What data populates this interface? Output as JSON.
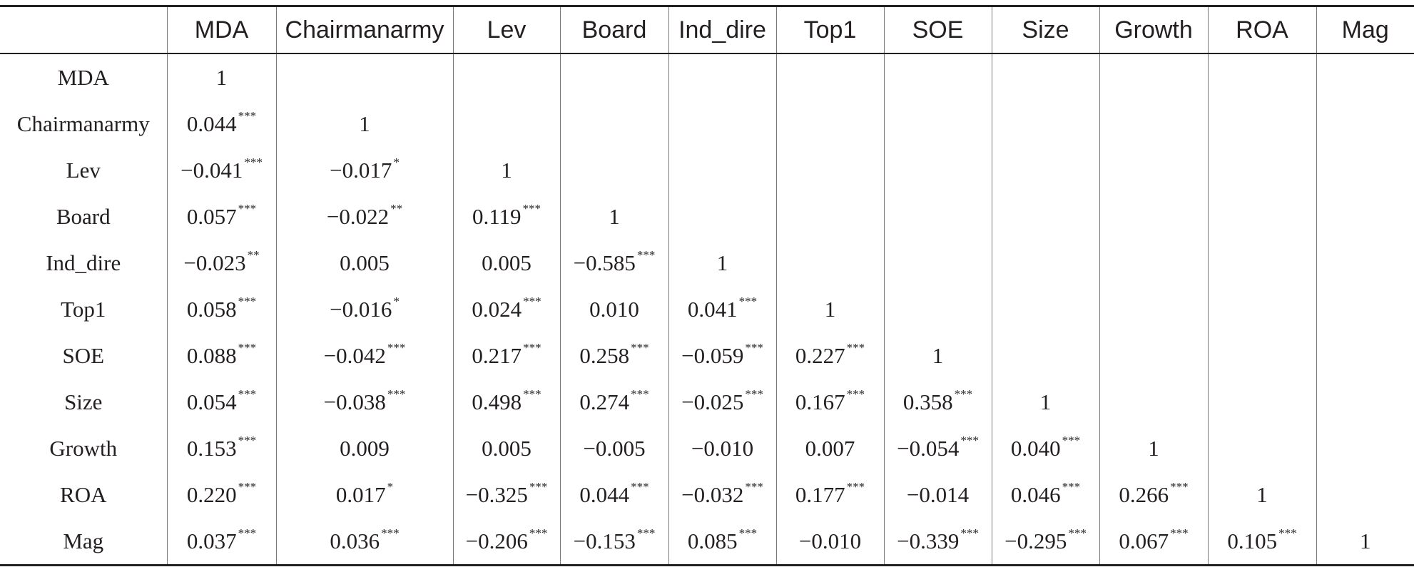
{
  "table": {
    "columns": [
      "",
      "MDA",
      "Chairmanarmy",
      "Lev",
      "Board",
      "Ind_dire",
      "Top1",
      "SOE",
      "Size",
      "Growth",
      "ROA",
      "Mag"
    ],
    "rows": [
      {
        "label": "MDA",
        "cells": [
          {
            "v": "1",
            "s": ""
          },
          {
            "v": "",
            "s": ""
          },
          {
            "v": "",
            "s": ""
          },
          {
            "v": "",
            "s": ""
          },
          {
            "v": "",
            "s": ""
          },
          {
            "v": "",
            "s": ""
          },
          {
            "v": "",
            "s": ""
          },
          {
            "v": "",
            "s": ""
          },
          {
            "v": "",
            "s": ""
          },
          {
            "v": "",
            "s": ""
          },
          {
            "v": "",
            "s": ""
          }
        ]
      },
      {
        "label": "Chairmanarmy",
        "cells": [
          {
            "v": "0.044",
            "s": "***"
          },
          {
            "v": "1",
            "s": ""
          },
          {
            "v": "",
            "s": ""
          },
          {
            "v": "",
            "s": ""
          },
          {
            "v": "",
            "s": ""
          },
          {
            "v": "",
            "s": ""
          },
          {
            "v": "",
            "s": ""
          },
          {
            "v": "",
            "s": ""
          },
          {
            "v": "",
            "s": ""
          },
          {
            "v": "",
            "s": ""
          },
          {
            "v": "",
            "s": ""
          }
        ]
      },
      {
        "label": "Lev",
        "cells": [
          {
            "v": "−0.041",
            "s": "***"
          },
          {
            "v": "−0.017",
            "s": "*"
          },
          {
            "v": "1",
            "s": ""
          },
          {
            "v": "",
            "s": ""
          },
          {
            "v": "",
            "s": ""
          },
          {
            "v": "",
            "s": ""
          },
          {
            "v": "",
            "s": ""
          },
          {
            "v": "",
            "s": ""
          },
          {
            "v": "",
            "s": ""
          },
          {
            "v": "",
            "s": ""
          },
          {
            "v": "",
            "s": ""
          }
        ]
      },
      {
        "label": "Board",
        "cells": [
          {
            "v": "0.057",
            "s": "***"
          },
          {
            "v": "−0.022",
            "s": "**"
          },
          {
            "v": "0.119",
            "s": "***"
          },
          {
            "v": "1",
            "s": ""
          },
          {
            "v": "",
            "s": ""
          },
          {
            "v": "",
            "s": ""
          },
          {
            "v": "",
            "s": ""
          },
          {
            "v": "",
            "s": ""
          },
          {
            "v": "",
            "s": ""
          },
          {
            "v": "",
            "s": ""
          },
          {
            "v": "",
            "s": ""
          }
        ]
      },
      {
        "label": "Ind_dire",
        "cells": [
          {
            "v": "−0.023",
            "s": "**"
          },
          {
            "v": "0.005",
            "s": ""
          },
          {
            "v": "0.005",
            "s": ""
          },
          {
            "v": "−0.585",
            "s": "***"
          },
          {
            "v": "1",
            "s": ""
          },
          {
            "v": "",
            "s": ""
          },
          {
            "v": "",
            "s": ""
          },
          {
            "v": "",
            "s": ""
          },
          {
            "v": "",
            "s": ""
          },
          {
            "v": "",
            "s": ""
          },
          {
            "v": "",
            "s": ""
          }
        ]
      },
      {
        "label": "Top1",
        "cells": [
          {
            "v": "0.058",
            "s": "***"
          },
          {
            "v": "−0.016",
            "s": "*"
          },
          {
            "v": "0.024",
            "s": "***"
          },
          {
            "v": "0.010",
            "s": ""
          },
          {
            "v": "0.041",
            "s": "***"
          },
          {
            "v": "1",
            "s": ""
          },
          {
            "v": "",
            "s": ""
          },
          {
            "v": "",
            "s": ""
          },
          {
            "v": "",
            "s": ""
          },
          {
            "v": "",
            "s": ""
          },
          {
            "v": "",
            "s": ""
          }
        ]
      },
      {
        "label": "SOE",
        "cells": [
          {
            "v": "0.088",
            "s": "***"
          },
          {
            "v": "−0.042",
            "s": "***"
          },
          {
            "v": "0.217",
            "s": "***"
          },
          {
            "v": "0.258",
            "s": "***"
          },
          {
            "v": "−0.059",
            "s": "***"
          },
          {
            "v": "0.227",
            "s": "***"
          },
          {
            "v": "1",
            "s": ""
          },
          {
            "v": "",
            "s": ""
          },
          {
            "v": "",
            "s": ""
          },
          {
            "v": "",
            "s": ""
          },
          {
            "v": "",
            "s": ""
          }
        ]
      },
      {
        "label": "Size",
        "cells": [
          {
            "v": "0.054",
            "s": "***"
          },
          {
            "v": "−0.038",
            "s": "***"
          },
          {
            "v": "0.498",
            "s": "***"
          },
          {
            "v": "0.274",
            "s": "***"
          },
          {
            "v": "−0.025",
            "s": "***"
          },
          {
            "v": "0.167",
            "s": "***"
          },
          {
            "v": "0.358",
            "s": "***"
          },
          {
            "v": "1",
            "s": ""
          },
          {
            "v": "",
            "s": ""
          },
          {
            "v": "",
            "s": ""
          },
          {
            "v": "",
            "s": ""
          }
        ]
      },
      {
        "label": "Growth",
        "cells": [
          {
            "v": "0.153",
            "s": "***"
          },
          {
            "v": "0.009",
            "s": ""
          },
          {
            "v": "0.005",
            "s": ""
          },
          {
            "v": "−0.005",
            "s": ""
          },
          {
            "v": "−0.010",
            "s": ""
          },
          {
            "v": "0.007",
            "s": ""
          },
          {
            "v": "−0.054",
            "s": "***"
          },
          {
            "v": "0.040",
            "s": "***"
          },
          {
            "v": "1",
            "s": ""
          },
          {
            "v": "",
            "s": ""
          },
          {
            "v": "",
            "s": ""
          }
        ]
      },
      {
        "label": "ROA",
        "cells": [
          {
            "v": "0.220",
            "s": "***"
          },
          {
            "v": "0.017",
            "s": "*"
          },
          {
            "v": "−0.325",
            "s": "***"
          },
          {
            "v": "0.044",
            "s": "***"
          },
          {
            "v": "−0.032",
            "s": "***"
          },
          {
            "v": "0.177",
            "s": "***"
          },
          {
            "v": "−0.014",
            "s": ""
          },
          {
            "v": "0.046",
            "s": "***"
          },
          {
            "v": "0.266",
            "s": "***"
          },
          {
            "v": "1",
            "s": ""
          },
          {
            "v": "",
            "s": ""
          }
        ]
      },
      {
        "label": "Mag",
        "cells": [
          {
            "v": "0.037",
            "s": "***"
          },
          {
            "v": "0.036",
            "s": "***"
          },
          {
            "v": "−0.206",
            "s": "***"
          },
          {
            "v": "−0.153",
            "s": "***"
          },
          {
            "v": "0.085",
            "s": "***"
          },
          {
            "v": "−0.010",
            "s": ""
          },
          {
            "v": "−0.339",
            "s": "***"
          },
          {
            "v": "−0.295",
            "s": "***"
          },
          {
            "v": "0.067",
            "s": "***"
          },
          {
            "v": "0.105",
            "s": "***"
          },
          {
            "v": "1",
            "s": ""
          }
        ]
      }
    ]
  }
}
